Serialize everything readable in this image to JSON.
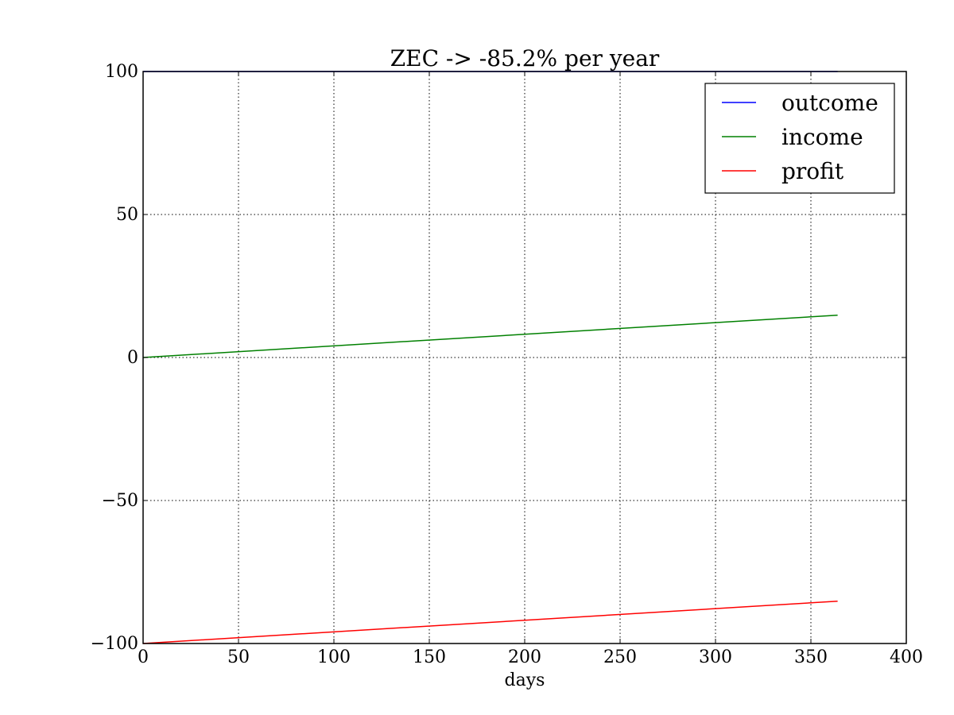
{
  "chart_data": {
    "type": "line",
    "title": "ZEC -> -85.2% per year",
    "xlabel": "days",
    "ylabel": "",
    "xlim": [
      0,
      400
    ],
    "ylim": [
      -100,
      100
    ],
    "xticks": [
      0,
      50,
      100,
      150,
      200,
      250,
      300,
      350,
      400
    ],
    "xtick_labels": [
      "0",
      "50",
      "100",
      "150",
      "200",
      "250",
      "300",
      "350",
      "400"
    ],
    "yticks": [
      -100,
      -50,
      0,
      50,
      100
    ],
    "ytick_labels": [
      "−100",
      "−50",
      "0",
      "50",
      "100"
    ],
    "grid": true,
    "legend_position": "top-right",
    "series": [
      {
        "name": "outcome",
        "color": "#0000ff",
        "x": [
          0,
          364
        ],
        "y": [
          100,
          100
        ]
      },
      {
        "name": "income",
        "color": "#008000",
        "x": [
          0,
          364
        ],
        "y": [
          0,
          14.8
        ]
      },
      {
        "name": "profit",
        "color": "#ff0000",
        "x": [
          0,
          364
        ],
        "y": [
          -100,
          -85.2
        ]
      }
    ]
  }
}
